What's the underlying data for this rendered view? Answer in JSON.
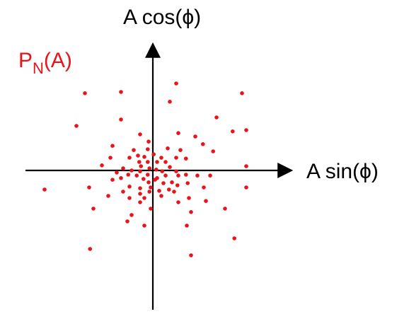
{
  "labels": {
    "y_axis": "A cos(ϕ)",
    "x_axis": "A sin(ϕ)",
    "distribution_main": "P",
    "distribution_sub": "N",
    "distribution_arg": "(A)"
  },
  "colors": {
    "axes": "#000000",
    "points": "#e8141c",
    "distribution_label": "#e8141c"
  },
  "scatter_points": [
    [
      0.55,
      2.05
    ],
    [
      -1.6,
      1.82
    ],
    [
      -0.75,
      1.85
    ],
    [
      2.1,
      1.82
    ],
    [
      0.4,
      1.62
    ],
    [
      -0.75,
      1.2
    ],
    [
      1.5,
      1.25
    ],
    [
      -1.8,
      1.05
    ],
    [
      1.88,
      0.92
    ],
    [
      2.2,
      0.95
    ],
    [
      -0.3,
      0.85
    ],
    [
      0.6,
      0.88
    ],
    [
      -0.1,
      0.68
    ],
    [
      1.0,
      0.8
    ],
    [
      1.18,
      0.62
    ],
    [
      -0.95,
      0.58
    ],
    [
      -0.45,
      0.48
    ],
    [
      -0.12,
      0.5
    ],
    [
      0.35,
      0.52
    ],
    [
      0.65,
      0.48
    ],
    [
      1.42,
      0.45
    ],
    [
      -1.0,
      0.3
    ],
    [
      -0.55,
      0.3
    ],
    [
      -0.35,
      0.35
    ],
    [
      -0.2,
      0.32
    ],
    [
      0.02,
      0.38
    ],
    [
      0.2,
      0.3
    ],
    [
      0.55,
      0.3
    ],
    [
      0.78,
      0.28
    ],
    [
      -1.2,
      0.12
    ],
    [
      -0.32,
      0.2
    ],
    [
      -0.12,
      0.2
    ],
    [
      0.1,
      0.2
    ],
    [
      0.3,
      0.2
    ],
    [
      -0.7,
      0.05
    ],
    [
      -0.28,
      0.1
    ],
    [
      -0.08,
      0.05
    ],
    [
      0.08,
      0.02
    ],
    [
      0.4,
      0.08
    ],
    [
      -0.5,
      0.0
    ],
    [
      -0.85,
      -0.05
    ],
    [
      -0.3,
      -0.02
    ],
    [
      0.22,
      -0.02
    ],
    [
      0.55,
      -0.02
    ],
    [
      -0.58,
      -0.1
    ],
    [
      -0.38,
      -0.12
    ],
    [
      -0.12,
      -0.1
    ],
    [
      -0.22,
      -0.2
    ],
    [
      0.1,
      -0.18
    ],
    [
      0.3,
      -0.12
    ],
    [
      0.6,
      -0.12
    ],
    [
      0.78,
      -0.1
    ],
    [
      -0.95,
      -0.22
    ],
    [
      -0.75,
      -0.18
    ],
    [
      -0.1,
      -0.28
    ],
    [
      0.05,
      -0.22
    ],
    [
      0.25,
      -0.3
    ],
    [
      0.45,
      -0.28
    ],
    [
      1.05,
      -0.12
    ],
    [
      1.35,
      -0.12
    ],
    [
      2.2,
      0.1
    ],
    [
      -0.55,
      -0.38
    ],
    [
      -0.3,
      -0.42
    ],
    [
      -0.05,
      -0.4
    ],
    [
      0.38,
      -0.45
    ],
    [
      0.58,
      -0.35
    ],
    [
      0.82,
      -0.3
    ],
    [
      -0.7,
      -0.5
    ],
    [
      -0.3,
      -0.55
    ],
    [
      -0.08,
      -0.5
    ],
    [
      0.15,
      -0.48
    ],
    [
      0.5,
      -0.5
    ],
    [
      1.2,
      -0.4
    ],
    [
      -1.05,
      -0.6
    ],
    [
      -0.55,
      -0.65
    ],
    [
      -0.2,
      -0.65
    ],
    [
      0.2,
      -0.6
    ],
    [
      0.85,
      -0.65
    ],
    [
      -0.3,
      -0.75
    ],
    [
      0.6,
      -0.75
    ],
    [
      1.25,
      -0.72
    ],
    [
      -1.5,
      -0.4
    ],
    [
      2.2,
      -0.4
    ],
    [
      -2.55,
      -0.45
    ],
    [
      -1.4,
      -0.9
    ],
    [
      -0.05,
      -0.9
    ],
    [
      0.9,
      -0.98
    ],
    [
      1.7,
      -0.9
    ],
    [
      -0.5,
      -1.05
    ],
    [
      -0.6,
      -1.2
    ],
    [
      -0.2,
      -1.3
    ],
    [
      0.8,
      -1.3
    ],
    [
      1.92,
      -1.6
    ],
    [
      -1.48,
      -1.85
    ],
    [
      0.9,
      -2.0
    ]
  ]
}
